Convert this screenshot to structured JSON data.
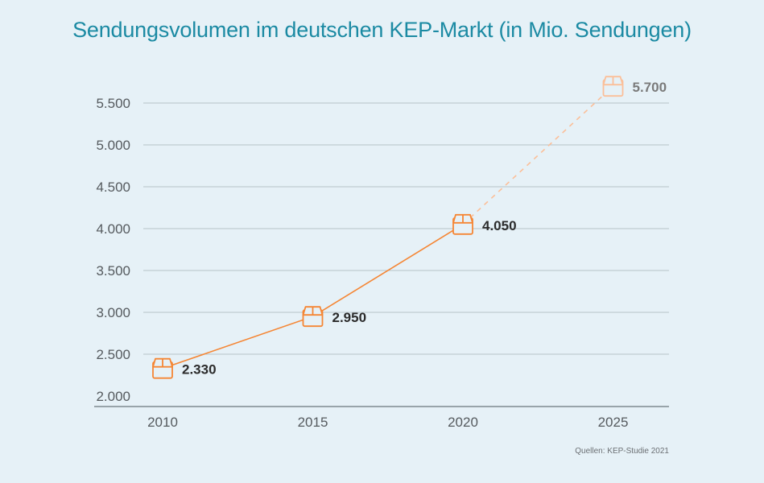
{
  "chart_data": {
    "type": "line",
    "title": "Sendungsvolumen im deutschen KEP-Markt (in Mio. Sendungen)",
    "xlabel": "",
    "ylabel": "",
    "categories": [
      "2010",
      "2015",
      "2020",
      "2025"
    ],
    "series": [
      {
        "name": "Sendungsvolumen",
        "values": [
          2330,
          2950,
          4050,
          5700
        ],
        "value_labels": [
          "2.330",
          "2.950",
          "4.050",
          "5.700"
        ],
        "forecast_from_index": 2,
        "marker": "package-box-icon"
      }
    ],
    "ylim": [
      2000,
      5700
    ],
    "yticks": [
      2000,
      2500,
      3000,
      3500,
      4000,
      4500,
      5000,
      5500
    ],
    "ytick_labels": [
      "2.000",
      "2.500",
      "3.000",
      "3.500",
      "4.000",
      "4.500",
      "5.000",
      "5.500"
    ],
    "grid": true,
    "legend": "none",
    "colors": {
      "line": "#f58634",
      "forecast": "#fbbf99",
      "grid": "#b7c2c7",
      "axis": "#7f8a90",
      "title": "#1b8aa3",
      "label": "#2b2b2b",
      "forecast_label": "#7a7a7a"
    }
  },
  "source": "Quellen: KEP-Studie 2021"
}
